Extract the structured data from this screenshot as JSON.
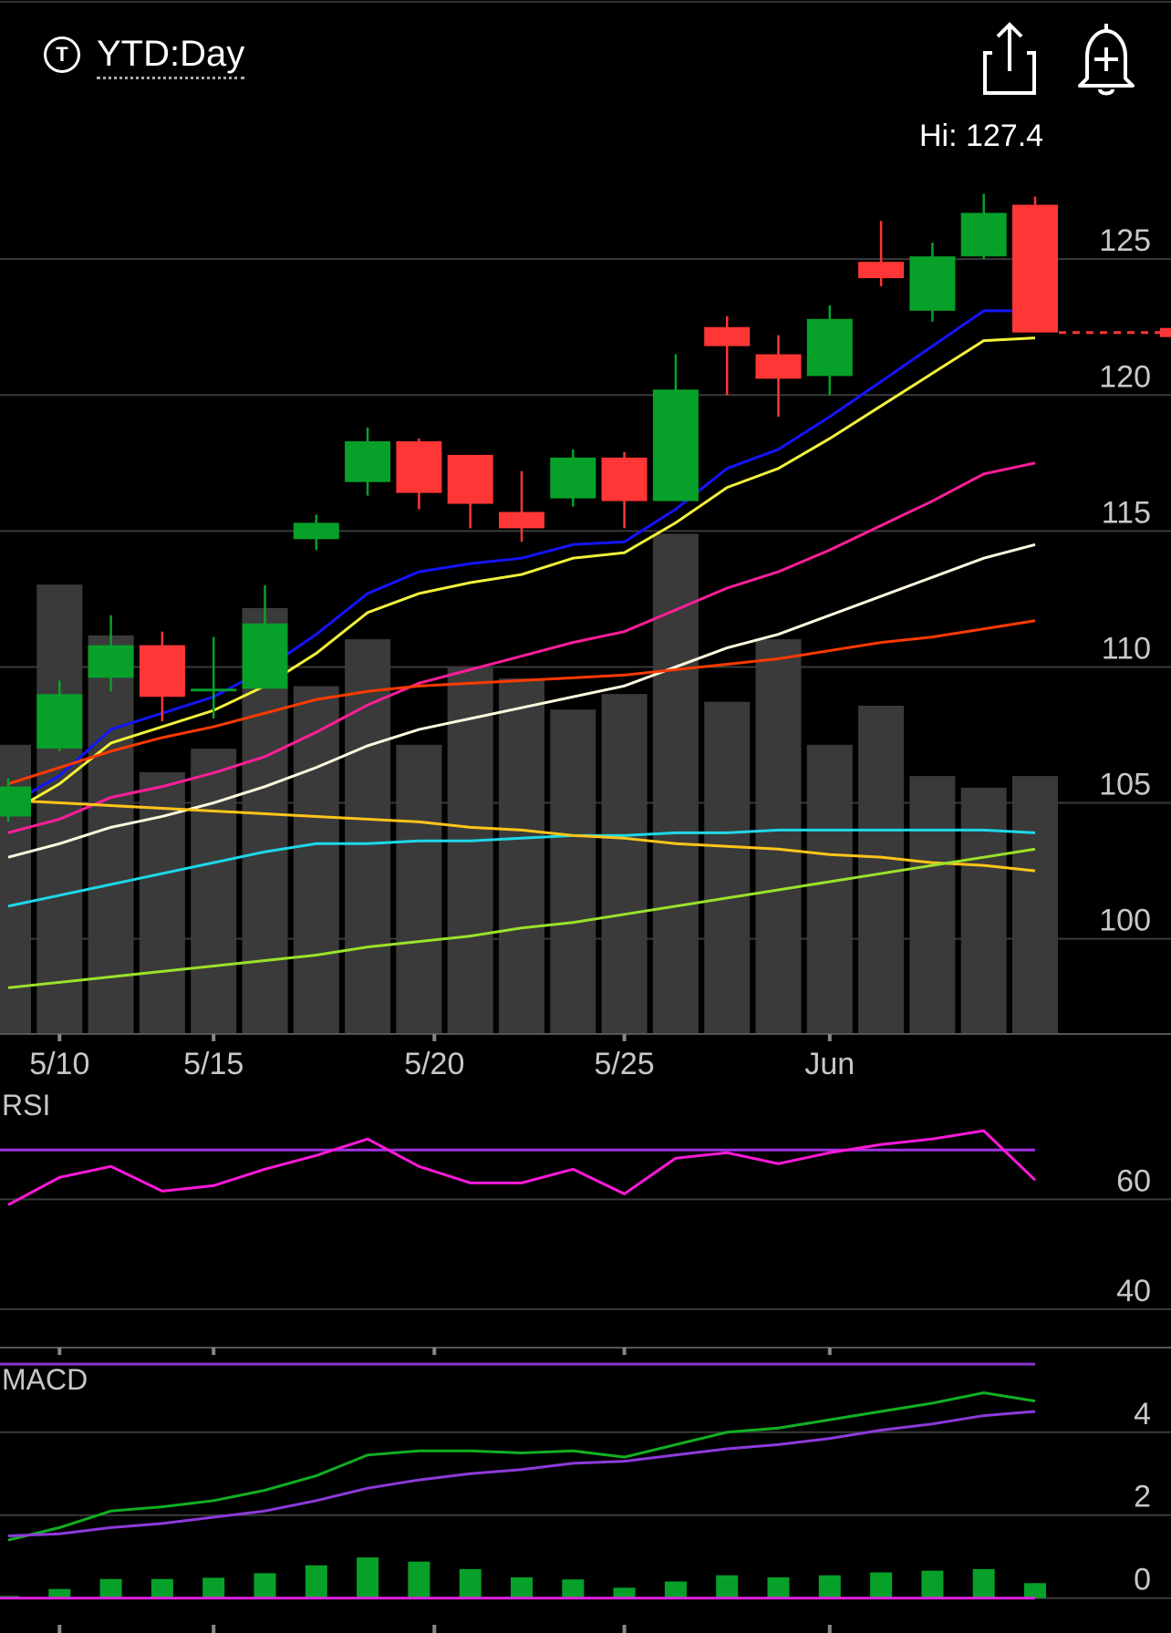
{
  "header": {
    "ticker_icon_glyph": "T",
    "range_label": "YTD:Day",
    "share_icon": "share-icon",
    "alert_icon": "alert-bell-plus-icon"
  },
  "hi_label": "Hi: 127.4",
  "chart_data": [
    {
      "type": "candlestick",
      "title": "",
      "ylim": [
        96.5,
        129.5
      ],
      "y_ticks": [
        100,
        105,
        110,
        115,
        120,
        125
      ],
      "x_ticks": [
        {
          "label": "5/10",
          "index": 1
        },
        {
          "label": "5/15",
          "index": 4
        },
        {
          "label": "5/20",
          "index": 8.3
        },
        {
          "label": "5/25",
          "index": 12
        },
        {
          "label": "Jun",
          "index": 16
        }
      ],
      "last_price": 122.3,
      "colors": {
        "up": "#07a12a",
        "down": "#ff3636",
        "volume": "#3a3a3a",
        "grid": "#3a3a3a",
        "axis_text": "#c8c8c8"
      },
      "candles": [
        {
          "open": 104.5,
          "close": 105.6,
          "high": 105.9,
          "low": 104.3
        },
        {
          "open": 107.0,
          "close": 109.0,
          "high": 109.5,
          "low": 106.9
        },
        {
          "open": 109.6,
          "close": 110.8,
          "high": 111.9,
          "low": 109.1
        },
        {
          "open": 110.8,
          "close": 108.9,
          "high": 111.3,
          "low": 108.0
        },
        {
          "open": 109.1,
          "close": 109.2,
          "high": 111.1,
          "low": 108.1
        },
        {
          "open": 109.2,
          "close": 111.6,
          "high": 113.0,
          "low": 109.2
        },
        {
          "open": 114.7,
          "close": 115.3,
          "high": 115.6,
          "low": 114.3
        },
        {
          "open": 116.8,
          "close": 118.3,
          "high": 118.8,
          "low": 116.3
        },
        {
          "open": 118.3,
          "close": 116.4,
          "high": 118.4,
          "low": 115.8
        },
        {
          "open": 117.8,
          "close": 116.0,
          "high": 117.8,
          "low": 115.1
        },
        {
          "open": 115.7,
          "close": 115.1,
          "high": 117.2,
          "low": 114.6
        },
        {
          "open": 116.2,
          "close": 117.7,
          "high": 118.0,
          "low": 115.9
        },
        {
          "open": 117.7,
          "close": 116.1,
          "high": 117.9,
          "low": 115.1
        },
        {
          "open": 116.1,
          "close": 120.2,
          "high": 121.5,
          "low": 116.1
        },
        {
          "open": 122.5,
          "close": 121.8,
          "high": 122.9,
          "low": 120.0
        },
        {
          "open": 121.5,
          "close": 120.6,
          "high": 122.2,
          "low": 119.2
        },
        {
          "open": 120.7,
          "close": 122.8,
          "high": 123.3,
          "low": 120.0
        },
        {
          "open": 124.9,
          "close": 124.3,
          "high": 126.4,
          "low": 124.0
        },
        {
          "open": 123.1,
          "close": 125.1,
          "high": 125.6,
          "low": 122.7
        },
        {
          "open": 125.1,
          "close": 126.7,
          "high": 127.4,
          "low": 125.0
        },
        {
          "open": 127.0,
          "close": 122.3,
          "high": 127.3,
          "low": 122.3
        }
      ],
      "volume": [
        74,
        115,
        102,
        67,
        73,
        109,
        89,
        101,
        74,
        94,
        91,
        83,
        87,
        128,
        85,
        101,
        74,
        84,
        66,
        63,
        66
      ],
      "moving_averages": [
        {
          "color": "#1414ff",
          "values": [
            104.9,
            106.0,
            107.7,
            108.3,
            108.9,
            109.9,
            111.2,
            112.7,
            113.5,
            113.8,
            114.0,
            114.5,
            114.6,
            115.8,
            117.3,
            118.0,
            119.2,
            120.5,
            121.8,
            123.1,
            123.1
          ]
        },
        {
          "color": "#f2f23a",
          "values": [
            104.6,
            105.7,
            107.2,
            107.8,
            108.4,
            109.3,
            110.5,
            112.0,
            112.7,
            113.1,
            113.4,
            114.0,
            114.2,
            115.3,
            116.6,
            117.3,
            118.4,
            119.6,
            120.8,
            122.0,
            122.1
          ]
        },
        {
          "color": "#ff1e9a",
          "values": [
            103.9,
            104.4,
            105.2,
            105.6,
            106.1,
            106.7,
            107.6,
            108.6,
            109.4,
            109.9,
            110.4,
            110.9,
            111.3,
            112.1,
            112.9,
            113.5,
            114.3,
            115.2,
            116.1,
            117.1,
            117.5
          ]
        },
        {
          "color": "#fffbe0",
          "values": [
            103.0,
            103.5,
            104.1,
            104.5,
            105.0,
            105.6,
            106.3,
            107.1,
            107.7,
            108.1,
            108.5,
            108.9,
            109.3,
            110.0,
            110.7,
            111.2,
            111.9,
            112.6,
            113.3,
            114.0,
            114.5
          ]
        },
        {
          "color": "#ff3a00",
          "values": [
            105.7,
            106.3,
            106.9,
            107.4,
            107.8,
            108.3,
            108.8,
            109.1,
            109.3,
            109.4,
            109.5,
            109.6,
            109.7,
            109.9,
            110.1,
            110.3,
            110.6,
            110.9,
            111.1,
            111.4,
            111.7
          ]
        },
        {
          "color": "#1ed8e8",
          "values": [
            101.2,
            101.6,
            102.0,
            102.4,
            102.8,
            103.2,
            103.5,
            103.5,
            103.6,
            103.6,
            103.7,
            103.8,
            103.8,
            103.9,
            103.9,
            104.0,
            104.0,
            104.0,
            104.0,
            104.0,
            103.9
          ]
        },
        {
          "color": "#ffc51a",
          "values": [
            105.1,
            105.0,
            104.9,
            104.8,
            104.7,
            104.6,
            104.5,
            104.4,
            104.3,
            104.1,
            104.0,
            103.8,
            103.7,
            103.5,
            103.4,
            103.3,
            103.1,
            103.0,
            102.8,
            102.7,
            102.5
          ]
        },
        {
          "color": "#9be22a",
          "values": [
            98.2,
            98.4,
            98.6,
            98.8,
            99.0,
            99.2,
            99.4,
            99.7,
            99.9,
            100.1,
            100.4,
            100.6,
            100.9,
            101.2,
            101.5,
            101.8,
            102.1,
            102.4,
            102.7,
            103.0,
            103.3
          ]
        }
      ]
    },
    {
      "type": "line",
      "title": "RSI",
      "ylim": [
        33,
        80
      ],
      "y_ticks": [
        40,
        60
      ],
      "bands": [
        {
          "value": 69,
          "color": "#a233e0"
        },
        {
          "value": 30,
          "color": "#8a33c8"
        }
      ],
      "series": [
        {
          "color": "#ff19d9",
          "values": [
            59,
            64,
            66,
            61.5,
            62.5,
            65.5,
            68,
            71,
            66,
            63,
            63,
            65.5,
            61,
            67.5,
            68.5,
            66.5,
            68.5,
            70,
            71,
            72.5,
            63.5
          ]
        }
      ]
    },
    {
      "type": "line",
      "title": "MACD",
      "ylim": [
        -0.6,
        5.6
      ],
      "y_ticks": [
        0,
        2,
        4
      ],
      "series": [
        {
          "color": "#11b022",
          "values": [
            1.4,
            1.7,
            2.1,
            2.2,
            2.35,
            2.6,
            2.95,
            3.45,
            3.55,
            3.55,
            3.5,
            3.55,
            3.4,
            3.7,
            4.0,
            4.1,
            4.3,
            4.5,
            4.7,
            4.95,
            4.75
          ]
        },
        {
          "color": "#8d3adb",
          "values": [
            1.5,
            1.55,
            1.7,
            1.8,
            1.95,
            2.1,
            2.35,
            2.65,
            2.85,
            3.0,
            3.1,
            3.25,
            3.3,
            3.45,
            3.6,
            3.7,
            3.85,
            4.05,
            4.2,
            4.4,
            4.5
          ]
        }
      ],
      "histogram": {
        "color": "#07a12a",
        "values": [
          0.05,
          0.22,
          0.46,
          0.46,
          0.49,
          0.6,
          0.79,
          0.98,
          0.88,
          0.7,
          0.5,
          0.45,
          0.25,
          0.4,
          0.55,
          0.5,
          0.55,
          0.62,
          0.66,
          0.7,
          0.36
        ]
      },
      "zero_line_color": "#e020e0"
    }
  ]
}
